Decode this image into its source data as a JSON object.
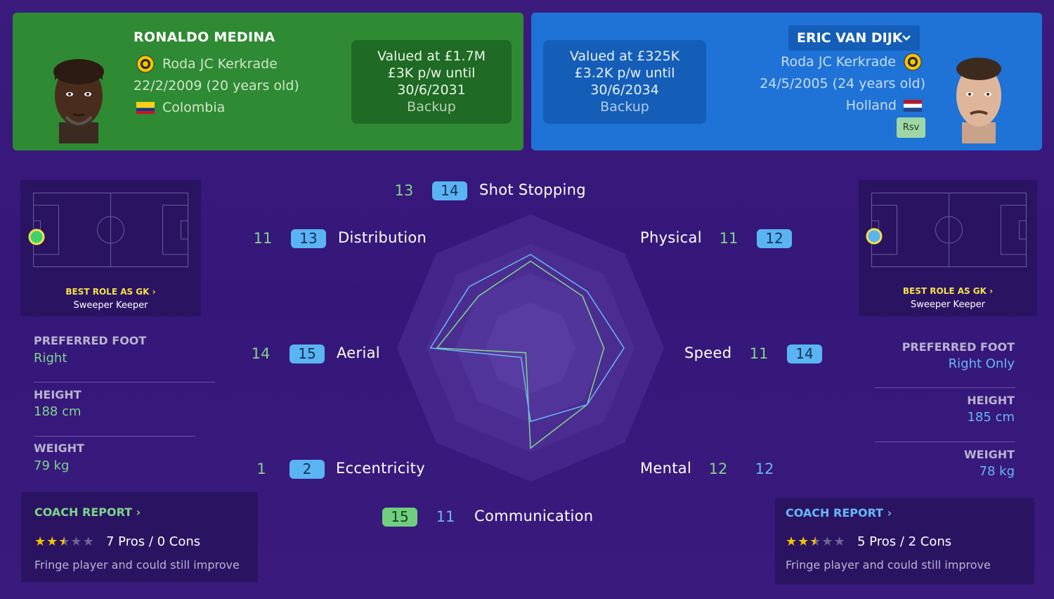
{
  "player_left": {
    "name": "RONALDO MEDINA",
    "club": "Roda JC Kerkrade",
    "dob": "22/2/2009 (20 years old)",
    "nationality": "Colombia",
    "value_line1": "Valued at £1.7M",
    "value_line2": "£3K p/w until",
    "value_line3": "30/6/2031",
    "squad_status": "Backup",
    "best_role_title": "BEST ROLE AS GK",
    "best_role": "Sweeper Keeper",
    "preferred_foot_label": "PREFERRED FOOT",
    "preferred_foot": "Right",
    "height_label": "HEIGHT",
    "height": "188 cm",
    "weight_label": "WEIGHT",
    "weight": "79 kg",
    "coach_report_title": "COACH REPORT",
    "coach_stars": 2.5,
    "coach_pros_cons": "7 Pros / 0 Cons",
    "coach_summary": "Fringe player and could still improve",
    "accent": "#2f8a34"
  },
  "player_right": {
    "name": "ERIC VAN DIJK",
    "club": "Roda JC Kerkrade",
    "dob": "24/5/2005 (24 years old)",
    "nationality": "Holland",
    "tag": "Rsv",
    "value_line1": "Valued at £325K",
    "value_line2": "£3.2K p/w until",
    "value_line3": "30/6/2034",
    "squad_status": "Backup",
    "best_role_title": "BEST ROLE AS GK",
    "best_role": "Sweeper Keeper",
    "preferred_foot_label": "PREFERRED FOOT",
    "preferred_foot": "Right Only",
    "height_label": "HEIGHT",
    "height": "185 cm",
    "weight_label": "WEIGHT",
    "weight": "78 kg",
    "coach_report_title": "COACH REPORT",
    "coach_stars": 2.5,
    "coach_pros_cons": "5 Pros / 2 Cons",
    "coach_summary": "Fringe player and could still improve",
    "accent": "#1f72d6"
  },
  "attributes": {
    "shot_stopping": {
      "label": "Shot Stopping",
      "left": "13",
      "right": "14"
    },
    "physical": {
      "label": "Physical",
      "left": "11",
      "right": "12"
    },
    "speed": {
      "label": "Speed",
      "left": "11",
      "right": "14"
    },
    "mental": {
      "label": "Mental",
      "left": "12",
      "right": "12"
    },
    "communication": {
      "label": "Communication",
      "left": "15",
      "right": "11"
    },
    "eccentricity": {
      "label": "Eccentricity",
      "left": "1",
      "right": "2"
    },
    "aerial": {
      "label": "Aerial",
      "left": "14",
      "right": "15"
    },
    "distribution": {
      "label": "Distribution",
      "left": "11",
      "right": "13"
    }
  },
  "chevron": "›",
  "dropdown_chevron": "⌄",
  "colors": {
    "left_series": "#7fd58a",
    "right_series": "#67b7f5",
    "gold": "#f5c400"
  }
}
